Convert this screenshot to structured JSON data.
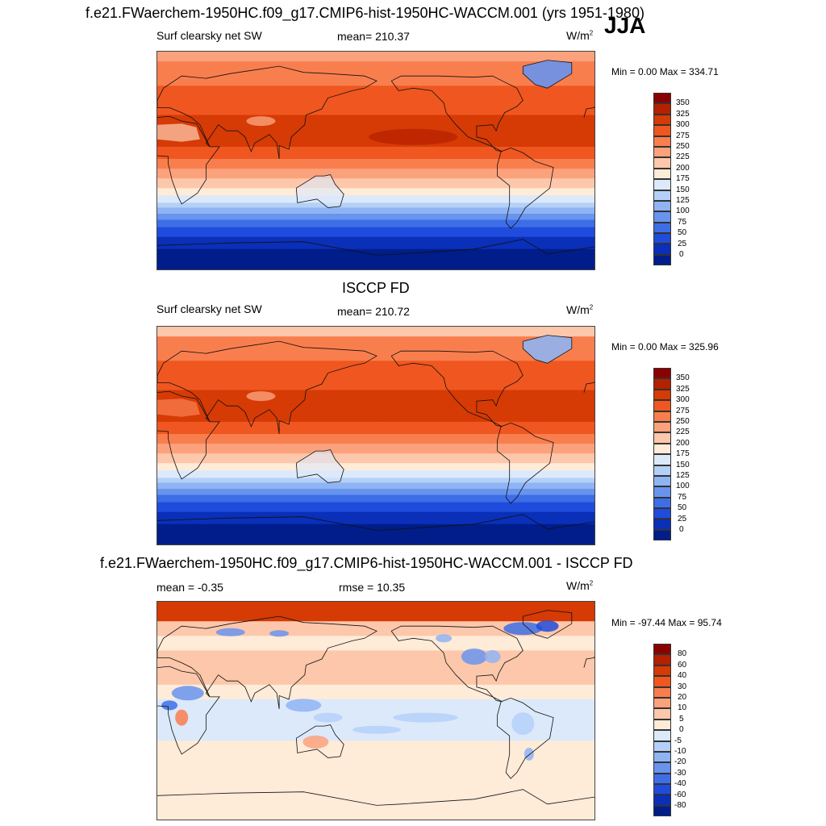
{
  "figure": {
    "title": "f.e21.FWaerchem-1950HC.f09_g17.CMIP6-hist-1950HC-WACCM.001 (yrs 1951-1980)",
    "season": "JJA"
  },
  "panels": [
    {
      "heading": "",
      "left_label": "Surf clearsky net SW",
      "center_label": "mean= 210.37",
      "unit_base": "W/m",
      "unit_sup": "2",
      "minmax": "Min =   0.00 Max = 334.71",
      "colorbar": {
        "labels": [
          "350",
          "325",
          "300",
          "275",
          "250",
          "225",
          "200",
          "175",
          "150",
          "125",
          "100",
          "75",
          "50",
          "25",
          "0"
        ],
        "colors": [
          "#8b0000",
          "#b52000",
          "#d63a05",
          "#f0561f",
          "#f97e4e",
          "#fba27c",
          "#fcc7aa",
          "#feebd8",
          "#dce9fb",
          "#b5d0f8",
          "#8fb4f3",
          "#6894ee",
          "#3e6ee6",
          "#1f4cdc",
          "#0a2fb8",
          "#001d8a"
        ]
      },
      "map_kind": "model"
    },
    {
      "heading": "ISCCP FD",
      "left_label": "Surf clearsky net SW",
      "center_label": "mean= 210.72",
      "unit_base": "W/m",
      "unit_sup": "2",
      "minmax": "Min =   0.00 Max = 325.96",
      "colorbar": {
        "labels": [
          "350",
          "325",
          "300",
          "275",
          "250",
          "225",
          "200",
          "175",
          "150",
          "125",
          "100",
          "75",
          "50",
          "25",
          "0"
        ],
        "colors": [
          "#8b0000",
          "#b52000",
          "#d63a05",
          "#f0561f",
          "#f97e4e",
          "#fba27c",
          "#fcc7aa",
          "#feebd8",
          "#dce9fb",
          "#b5d0f8",
          "#8fb4f3",
          "#6894ee",
          "#3e6ee6",
          "#1f4cdc",
          "#0a2fb8",
          "#001d8a"
        ]
      },
      "map_kind": "obs"
    },
    {
      "heading": "f.e21.FWaerchem-1950HC.f09_g17.CMIP6-hist-1950HC-WACCM.001 - ISCCP FD",
      "left_label": "mean =  -0.35",
      "center_label": "rmse =  10.35",
      "unit_base": "W/m",
      "unit_sup": "2",
      "minmax": "Min = -97.44 Max =  95.74",
      "colorbar": {
        "labels": [
          "80",
          "60",
          "40",
          "30",
          "20",
          "10",
          "5",
          "0",
          "-5",
          "-10",
          "-20",
          "-30",
          "-40",
          "-60",
          "-80"
        ],
        "colors": [
          "#8b0000",
          "#b52000",
          "#d63a05",
          "#f0561f",
          "#f97e4e",
          "#fba27c",
          "#fcc7aa",
          "#feebd8",
          "#dce9fb",
          "#b5d0f8",
          "#8fb4f3",
          "#6894ee",
          "#3e6ee6",
          "#1f4cdc",
          "#0a2fb8",
          "#001d8a"
        ]
      },
      "map_kind": "diff"
    }
  ]
}
